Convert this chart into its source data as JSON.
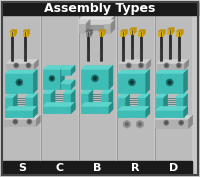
{
  "title": "Assembly Types",
  "title_bg": "#1a1a1a",
  "title_color": "#ffffff",
  "title_fontsize": 9,
  "bg_color": "#c8c8c8",
  "border_color": "#444444",
  "labels": [
    "S",
    "C",
    "B",
    "R",
    "D"
  ],
  "label_bg": "#1a1a1a",
  "label_color": "#ffffff",
  "label_fontsize": 8,
  "clamp_face": "#3dbdb5",
  "clamp_top": "#5dd5cc",
  "clamp_side": "#2a8a85",
  "clamp_edge": "#1a5a58",
  "clamp_inner": "#1a6a65",
  "plate_face": "#b0b0b0",
  "plate_top": "#d0d0d0",
  "plate_side": "#888888",
  "bolt_body": "#2a2a2a",
  "bolt_head": "#d4aa00",
  "bolt_head2": "#c09000",
  "nut_color": "#909090",
  "nut_edge": "#555555",
  "col_divider": "#888888",
  "figsize": [
    2.0,
    1.77
  ],
  "dpi": 100
}
